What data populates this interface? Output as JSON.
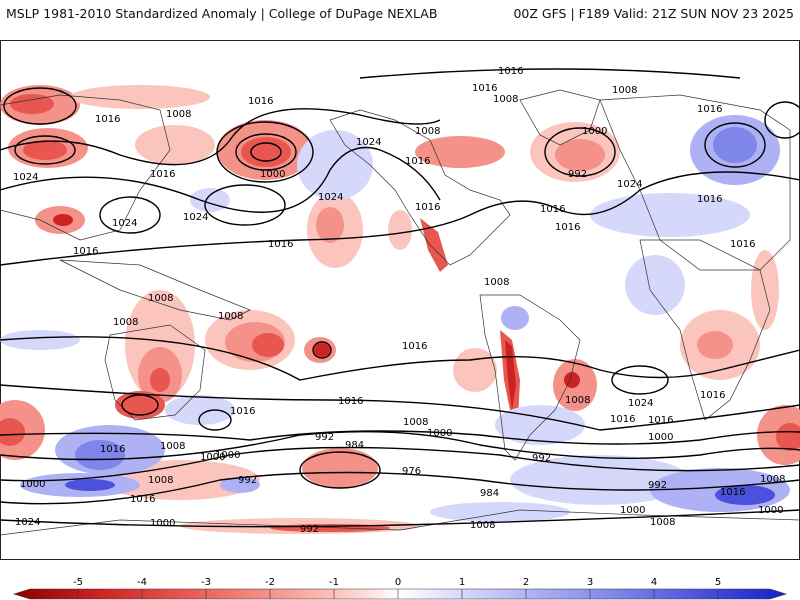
{
  "header": {
    "left": "MSLP 1981-2010 Standardized Anomaly | College of DuPage NEXLAB",
    "right": "00Z GFS | F189 Valid: 21Z SUN NOV 23 2025"
  },
  "map": {
    "contour_labels": [
      {
        "id": "l01",
        "text": "1016"
      },
      {
        "id": "l02",
        "text": "1016"
      },
      {
        "id": "l03",
        "text": "1016"
      },
      {
        "id": "l04",
        "text": "1008"
      },
      {
        "id": "l05",
        "text": "1008"
      },
      {
        "id": "l06",
        "text": "1008"
      },
      {
        "id": "l07",
        "text": "1016"
      },
      {
        "id": "l08",
        "text": "1024"
      },
      {
        "id": "l09",
        "text": "1016"
      },
      {
        "id": "l10",
        "text": "1024"
      },
      {
        "id": "l11",
        "text": "1000"
      },
      {
        "id": "l12",
        "text": "1024"
      },
      {
        "id": "l13",
        "text": "1024"
      },
      {
        "id": "l14",
        "text": "1016"
      },
      {
        "id": "l15",
        "text": "1024"
      },
      {
        "id": "l16",
        "text": "1016"
      },
      {
        "id": "l17",
        "text": "1016"
      },
      {
        "id": "l18",
        "text": "1016"
      },
      {
        "id": "l19",
        "text": "1008"
      },
      {
        "id": "l20",
        "text": "1000"
      },
      {
        "id": "l21",
        "text": "992"
      },
      {
        "id": "l22",
        "text": "1016"
      },
      {
        "id": "l23",
        "text": "1016"
      },
      {
        "id": "l24",
        "text": "1016"
      },
      {
        "id": "l25",
        "text": "1016"
      },
      {
        "id": "l26",
        "text": "1024"
      },
      {
        "id": "l27",
        "text": "1016"
      },
      {
        "id": "l28",
        "text": "1016"
      },
      {
        "id": "l29",
        "text": "1008"
      },
      {
        "id": "l30",
        "text": "1008"
      },
      {
        "id": "l31",
        "text": "1008"
      },
      {
        "id": "l32",
        "text": "1008"
      },
      {
        "id": "l33",
        "text": "1016"
      },
      {
        "id": "l34",
        "text": "1016"
      },
      {
        "id": "l35",
        "text": "1008"
      },
      {
        "id": "l36",
        "text": "1024"
      },
      {
        "id": "l37",
        "text": "1016"
      },
      {
        "id": "l38",
        "text": "1016"
      },
      {
        "id": "l39",
        "text": "1016"
      },
      {
        "id": "l40",
        "text": "1008"
      },
      {
        "id": "l41",
        "text": "1000"
      },
      {
        "id": "l42",
        "text": "1008"
      },
      {
        "id": "l43",
        "text": "1016"
      },
      {
        "id": "l44",
        "text": "1000"
      },
      {
        "id": "l45",
        "text": "992"
      },
      {
        "id": "l46",
        "text": "984"
      },
      {
        "id": "l47",
        "text": "976"
      },
      {
        "id": "l48",
        "text": "984"
      },
      {
        "id": "l49",
        "text": "992"
      },
      {
        "id": "l50",
        "text": "992"
      },
      {
        "id": "l51",
        "text": "1000"
      },
      {
        "id": "l52",
        "text": "1016"
      },
      {
        "id": "l53",
        "text": "1024"
      },
      {
        "id": "l54",
        "text": "1008"
      },
      {
        "id": "l55",
        "text": "1008"
      },
      {
        "id": "l56",
        "text": "1000"
      },
      {
        "id": "l57",
        "text": "992"
      },
      {
        "id": "l58",
        "text": "1000"
      },
      {
        "id": "l59",
        "text": "1008"
      },
      {
        "id": "l60",
        "text": "992"
      },
      {
        "id": "l61",
        "text": "1000"
      },
      {
        "id": "l62",
        "text": "1008"
      },
      {
        "id": "l63",
        "text": "1016"
      },
      {
        "id": "l64",
        "text": "1000"
      },
      {
        "id": "l65",
        "text": "1000"
      }
    ]
  },
  "colorbar": {
    "ticks": [
      "-5",
      "-4",
      "-3",
      "-2",
      "-1",
      "0",
      "1",
      "2",
      "3",
      "4",
      "5"
    ],
    "range": [
      -5,
      5
    ],
    "colors": {
      "n5": "#8b0000",
      "n4": "#cc2222",
      "n3": "#e8574f",
      "n2": "#f4928a",
      "n1": "#fbc5bd",
      "zero": "#ffffff",
      "p1": "#d6d8fb",
      "p2": "#aeb2f4",
      "p3": "#7f86ea",
      "p4": "#4a52dc",
      "p5": "#1420c8"
    }
  }
}
